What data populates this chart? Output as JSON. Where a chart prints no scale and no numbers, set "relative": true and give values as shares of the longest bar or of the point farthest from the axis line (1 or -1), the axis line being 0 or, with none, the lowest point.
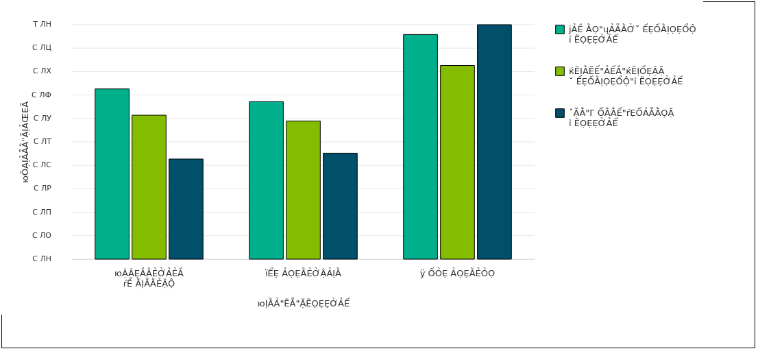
{
  "chart_data": {
    "type": "bar",
    "relative": true,
    "ylabel": "юÕẠỊẢẴẰ\"ẶỊẢŒẸÃ",
    "xlabel": "юỊẰẢ\"ẼẲ\"ẶẼỌẸẸỞẢẾ",
    "categories": [
      "юẬẬẸẮẰẺỞẢẺẮ\nŕỀ ẰỊẴẰẺẬỘ",
      "ïỂẸ ẢỌẸẰẺỞẬẢỊẰ",
      "ÿ ỐỎẸ ẢỌẸẰẺỎỌ"
    ],
    "series": [
      {
        "name": "ϳẢỀ ẰỌ\"ųẢẴẰỞ˘ ẾẸỐẰỊỌẸỔỘ\nỉ ẼỌẸẸỞẢẾ",
        "color": "#00b08c",
        "values": [
          0.726,
          0.672,
          0.958
        ]
      },
      {
        "name": "ќẼỊẰẼẾ\"ẢẾẮ\"ќẼỊỔẸẬẶ\n˘ ẾẸỐẰỊỌẸỔỘ\"ỉ ẼỌẸẸỞẢẾ",
        "color": "#84bd00",
        "values": [
          0.614,
          0.589,
          0.826
        ]
      },
      {
        "name": "ˆẶẰ\"Γ ỐẰẰẾ\"ŕẸỐẢẴẰỌẶ\nỉ ẼỌẸẸỞẢẾ",
        "color": "#004f6b",
        "values": [
          0.427,
          0.452,
          1.0
        ]
      }
    ],
    "annotations": [
      "Т ЛН",
      "С ЛЦ",
      "С ЛХ",
      "С ЛФ",
      "С ЛУ",
      "С ЛТ",
      "С ЛС",
      "С ЛР",
      "С ЛП",
      "С ЛО",
      "С ЛН"
    ],
    "grid": true,
    "legend": "right"
  }
}
